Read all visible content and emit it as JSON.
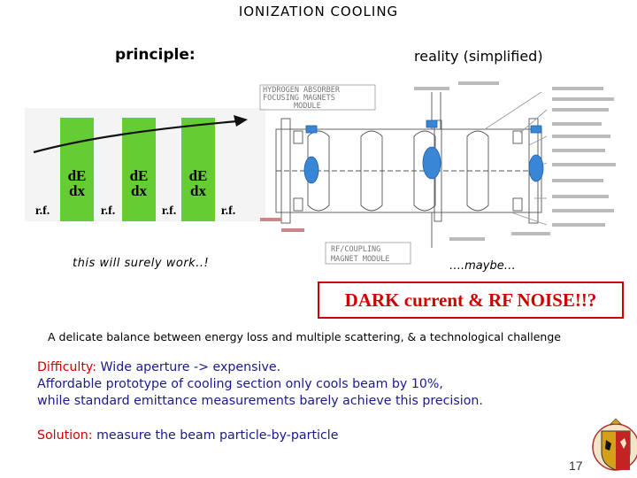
{
  "slide": {
    "title": "IONIZATION  COOLING",
    "page_number": "17"
  },
  "principle": {
    "heading": "principle:",
    "caption": "this will surely work..!",
    "absorber_label_top": "dE",
    "absorber_label_bottom": "dx",
    "rf_label": "r.f."
  },
  "reality": {
    "heading": "reality (simplified)",
    "caption": "….maybe…",
    "label_absorber": "HYDROGEN ABSORBER",
    "label_focusing": "FOCUSING MAGNETS",
    "label_module": "MODULE",
    "label_rf_coupling": "RF/COUPLING",
    "label_magnet_module": "MAGNET MODULE"
  },
  "warning": "DARK current & RF NOISE!!?",
  "balance_text": "A delicate balance between energy loss and multiple scattering, & a technological challenge",
  "difficulty": {
    "label": "Difficulty:",
    "line1": " Wide aperture -> expensive.",
    "line2": "Affordable prototype of cooling section only cools beam by 10%,",
    "line3": "while standard emittance measurements barely achieve this precision."
  },
  "solution": {
    "label": "Solution:",
    "text": " measure the beam particle-by-particle"
  },
  "colors": {
    "absorber_green": "#66cc33",
    "accent_red": "#d00000",
    "text_blue": "#1a1a8c",
    "reality_blue": "#3a86d6"
  },
  "icons": {
    "logo": "university-crest"
  }
}
